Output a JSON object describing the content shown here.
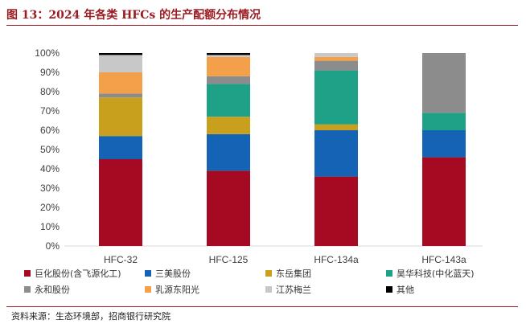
{
  "figure": {
    "title": "图 13：2024 年各类 HFCs 的生产配额分布情况",
    "source": "资料来源：生态环境部，招商银行研究院"
  },
  "chart_data": {
    "type": "bar",
    "stacked": true,
    "percent": true,
    "categories": [
      "HFC-32",
      "HFC-125",
      "HFC-134a",
      "HFC-143a"
    ],
    "ylim": [
      0,
      100
    ],
    "yticks": [
      "0%",
      "10%",
      "20%",
      "30%",
      "40%",
      "50%",
      "60%",
      "70%",
      "80%",
      "90%",
      "100%"
    ],
    "legend_position": "bottom",
    "series": [
      {
        "name": "巨化股份(含飞源化工)",
        "color": "#a50a22",
        "values": [
          45,
          39,
          36,
          46
        ]
      },
      {
        "name": "三美股份",
        "color": "#1463b4",
        "values": [
          12,
          19,
          24,
          14
        ]
      },
      {
        "name": "东岳集团",
        "color": "#c8a01e",
        "values": [
          20,
          9,
          3,
          0
        ]
      },
      {
        "name": "昊华科技(中化蓝天)",
        "color": "#1ea186",
        "values": [
          0,
          17,
          28,
          9
        ]
      },
      {
        "name": "永和股份",
        "color": "#8c8c8c",
        "values": [
          2,
          4,
          5,
          31
        ]
      },
      {
        "name": "乳源东阳光",
        "color": "#f4a04a",
        "values": [
          11,
          10,
          2,
          0
        ]
      },
      {
        "name": "江苏梅兰",
        "color": "#c8c8c8",
        "values": [
          9,
          1,
          2,
          0
        ]
      },
      {
        "name": "其他",
        "color": "#000000",
        "values": [
          1,
          1,
          0,
          0
        ]
      }
    ]
  }
}
